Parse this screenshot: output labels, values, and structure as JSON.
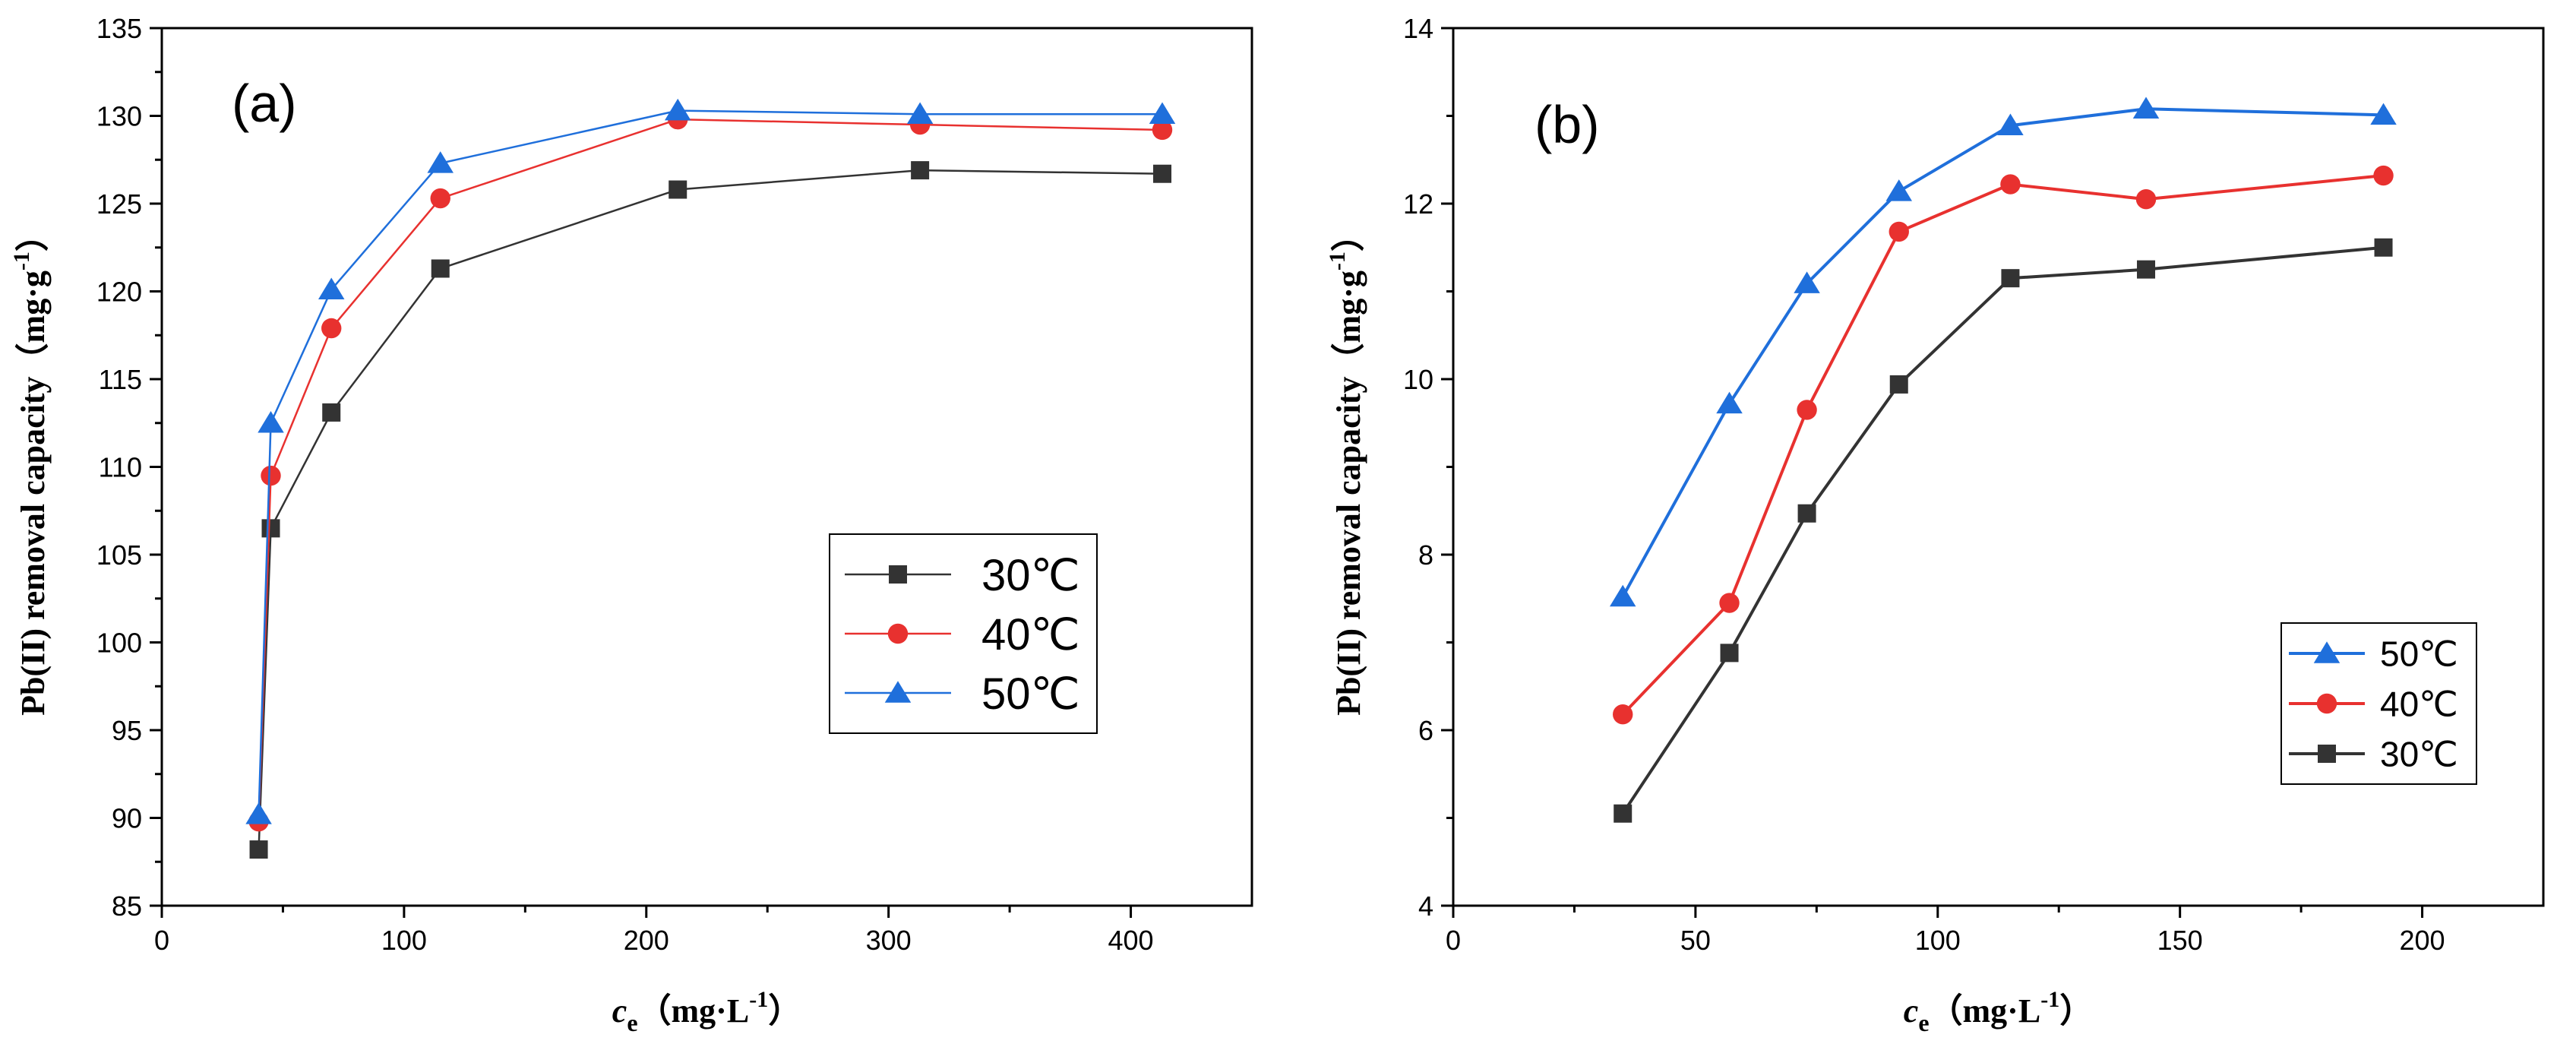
{
  "chart_data": [
    {
      "type": "line",
      "panel_label": "(a)",
      "xlabel_main": "c",
      "xlabel_sub": "e",
      "xlabel_unit": "（mg·L",
      "xlabel_unit_sup": "-1",
      "xlabel_close": "）",
      "ylabel": "Pb(II) removal capacity（mg·g",
      "ylabel_sup": "-1",
      "ylabel_close": "）",
      "xlim": [
        0,
        450
      ],
      "ylim": [
        85,
        135
      ],
      "xticks": [
        0,
        100,
        200,
        300,
        400
      ],
      "xminor": [
        50,
        150,
        250,
        350
      ],
      "yticks": [
        85,
        90,
        95,
        100,
        105,
        110,
        115,
        120,
        125,
        130,
        135
      ],
      "grid": false,
      "legend_position": "right-middle",
      "legend_order": [
        "30℃",
        "40℃",
        "50℃"
      ],
      "series": [
        {
          "name": "30℃",
          "color": "#333333",
          "marker": "square",
          "x": [
            40,
            45,
            70,
            115,
            213,
            313,
            413
          ],
          "y": [
            88.2,
            106.5,
            113.1,
            121.3,
            125.8,
            126.9,
            126.7
          ]
        },
        {
          "name": "40℃",
          "color": "#e8312f",
          "marker": "circle",
          "x": [
            40,
            45,
            70,
            115,
            213,
            313,
            413
          ],
          "y": [
            89.8,
            109.5,
            117.9,
            125.3,
            129.8,
            129.5,
            129.2
          ]
        },
        {
          "name": "50℃",
          "color": "#1f6fdb",
          "marker": "triangle",
          "x": [
            40,
            45,
            70,
            115,
            213,
            313,
            413
          ],
          "y": [
            90.2,
            112.5,
            120.1,
            127.3,
            130.3,
            130.1,
            130.1
          ]
        }
      ]
    },
    {
      "type": "line",
      "panel_label": "(b)",
      "xlabel_main": "c",
      "xlabel_sub": "e",
      "xlabel_unit": "（mg·L",
      "xlabel_unit_sup": "-1",
      "xlabel_close": "）",
      "ylabel": "Pb(II) removal capacity（mg·g",
      "ylabel_sup": "-1",
      "ylabel_close": "）",
      "xlim": [
        0,
        225
      ],
      "ylim": [
        4,
        14
      ],
      "xticks": [
        0,
        50,
        100,
        150,
        200
      ],
      "xminor": [
        25,
        75,
        125,
        175
      ],
      "yticks": [
        4,
        6,
        8,
        10,
        12,
        14
      ],
      "grid": false,
      "legend_position": "bottom-right",
      "legend_order": [
        "50℃",
        "40℃",
        "30℃"
      ],
      "series": [
        {
          "name": "30℃",
          "color": "#333333",
          "marker": "square",
          "x": [
            35,
            57,
            73,
            92,
            115,
            143,
            192
          ],
          "y": [
            5.05,
            6.88,
            8.47,
            9.94,
            11.15,
            11.25,
            11.5
          ]
        },
        {
          "name": "40℃",
          "color": "#e8312f",
          "marker": "circle",
          "x": [
            35,
            57,
            73,
            92,
            115,
            143,
            192
          ],
          "y": [
            6.18,
            7.45,
            9.65,
            11.68,
            12.22,
            12.05,
            12.32
          ]
        },
        {
          "name": "50℃",
          "color": "#1f6fdb",
          "marker": "triangle",
          "x": [
            35,
            57,
            73,
            92,
            115,
            143,
            192
          ],
          "y": [
            7.52,
            9.72,
            11.09,
            12.14,
            12.89,
            13.08,
            13.01
          ]
        }
      ]
    }
  ]
}
